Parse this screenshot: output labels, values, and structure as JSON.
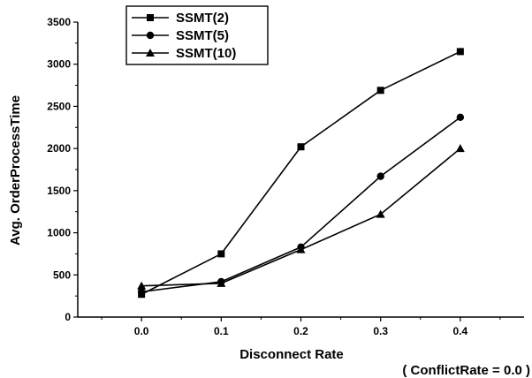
{
  "chart_data": {
    "type": "line",
    "title": "",
    "xlabel": "Disconnect Rate",
    "ylabel": "Avg. OrderProcessTime",
    "note": "( ConflictRate = 0.0 )",
    "x": [
      0.0,
      0.1,
      0.2,
      0.3,
      0.4
    ],
    "x_tick_labels": [
      "0.0",
      "0.1",
      "0.2",
      "0.3",
      "0.4"
    ],
    "xlim": [
      -0.08,
      0.48
    ],
    "ylim": [
      0,
      3500
    ],
    "y_ticks": [
      0,
      500,
      1000,
      1500,
      2000,
      2500,
      3000,
      3500
    ],
    "grid": false,
    "legend_position": "top-left",
    "series": [
      {
        "name": "SSMT(2)",
        "marker": "square",
        "values": [
          270,
          750,
          2020,
          2690,
          3150
        ]
      },
      {
        "name": "SSMT(5)",
        "marker": "circle",
        "values": [
          300,
          420,
          830,
          1670,
          2370
        ]
      },
      {
        "name": "SSMT(10)",
        "marker": "triangle",
        "values": [
          370,
          400,
          800,
          1220,
          2000
        ]
      }
    ],
    "colors": {
      "line": "#000000",
      "background": "#ffffff"
    }
  }
}
